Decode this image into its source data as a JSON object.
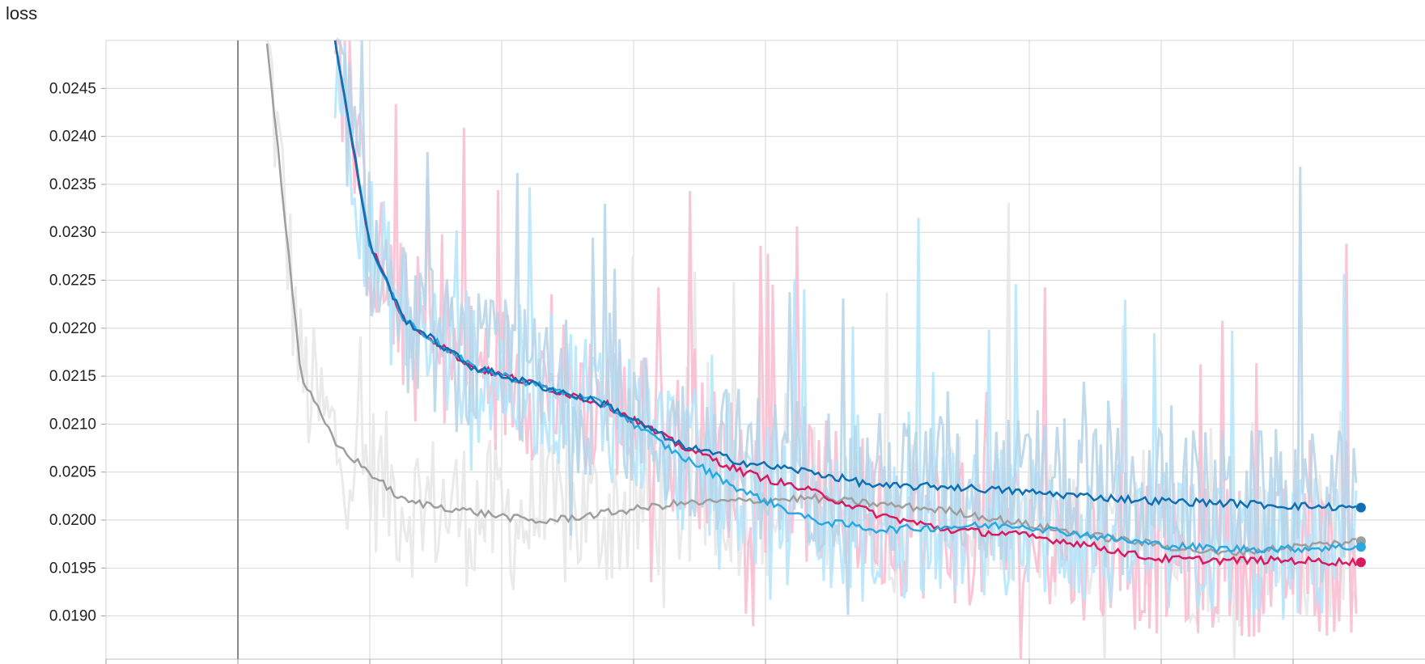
{
  "chart_data": {
    "type": "line",
    "title": "loss",
    "xlabel": "",
    "ylabel": "",
    "grid": true,
    "legend": "none",
    "ylim": [
      0.01855,
      0.025
    ],
    "y_ticks": [
      0.0245,
      0.024,
      0.0235,
      0.023,
      0.0225,
      0.022,
      0.0215,
      0.021,
      0.0205,
      0.02,
      0.0195,
      0.019
    ],
    "y_tick_labels": [
      "0.0245",
      "0.0240",
      "0.0235",
      "0.0230",
      "0.0225",
      "0.0220",
      "0.0215",
      "0.0210",
      "0.0205",
      "0.0200",
      "0.0195",
      "0.0190"
    ],
    "x_gridlines": 9,
    "highlight_x_index": 1,
    "series": [
      {
        "color": "#9e9e9e",
        "raw_color": "#e6e6e6",
        "x": [
          0.0,
          0.03,
          0.06,
          0.1,
          0.15,
          0.22,
          0.3,
          0.38,
          0.48,
          0.56,
          0.65,
          0.72,
          0.8,
          0.85,
          0.92,
          0.98,
          1.0
        ],
        "y": [
          0.025,
          0.0238,
          0.0233,
          0.0229,
          0.0225,
          0.0221,
          0.0218,
          0.0216,
          0.0214,
          0.0212,
          0.0209,
          0.0205,
          0.0202,
          0.0201,
          0.02,
          0.02,
          0.02
        ],
        "x_full": [
          0,
          0.25,
          0.5,
          1.0,
          2.0,
          3.0,
          4.0,
          5.0,
          6.0,
          7.0,
          8.0
        ],
        "y_full": [
          0.025,
          0.0215,
          0.0208,
          0.0202,
          0.01998,
          0.02017,
          0.02023,
          0.0201,
          0.01985,
          0.01965,
          0.01978
        ]
      },
      {
        "color": "#d81b60",
        "raw_color": "#f8bbd0",
        "x_full": [
          0.5,
          0.75,
          1.0,
          1.5,
          2.0,
          2.5,
          3.0,
          3.5,
          4.0,
          4.5,
          5.0,
          5.5,
          6.0,
          6.5,
          7.0,
          7.5,
          8.0
        ],
        "y_full": [
          0.025,
          0.0229,
          0.0221,
          0.0216,
          0.0214,
          0.0212,
          0.0208,
          0.0205,
          0.0203,
          0.02005,
          0.0199,
          0.01985,
          0.01975,
          0.0196,
          0.01958,
          0.01958,
          0.01956
        ]
      },
      {
        "color": "#29a9e0",
        "raw_color": "#b3e5fc",
        "x_full": [
          0.5,
          0.75,
          1.0,
          1.5,
          2.0,
          2.5,
          3.0,
          3.5,
          4.0,
          4.5,
          5.0,
          5.5,
          6.0,
          6.5,
          7.0,
          7.5,
          8.0
        ],
        "y_full": [
          0.025,
          0.0229,
          0.0221,
          0.0216,
          0.0214,
          0.0212,
          0.0207,
          0.0203,
          0.02,
          0.0199,
          0.01993,
          0.01995,
          0.01985,
          0.01975,
          0.0197,
          0.0197,
          0.01972
        ]
      },
      {
        "color": "#0f6fb2",
        "raw_color": "#b6d4e8",
        "x_full": [
          0.5,
          0.75,
          1.0,
          1.5,
          2.0,
          2.5,
          3.0,
          3.5,
          4.0,
          4.5,
          5.0,
          5.5,
          6.0,
          6.5,
          7.0,
          7.5,
          8.0
        ],
        "y_full": [
          0.025,
          0.0229,
          0.0221,
          0.0216,
          0.0214,
          0.0212,
          0.0208,
          0.0206,
          0.0205,
          0.02035,
          0.02035,
          0.0203,
          0.02025,
          0.0202,
          0.02018,
          0.02015,
          0.02013
        ]
      }
    ]
  }
}
